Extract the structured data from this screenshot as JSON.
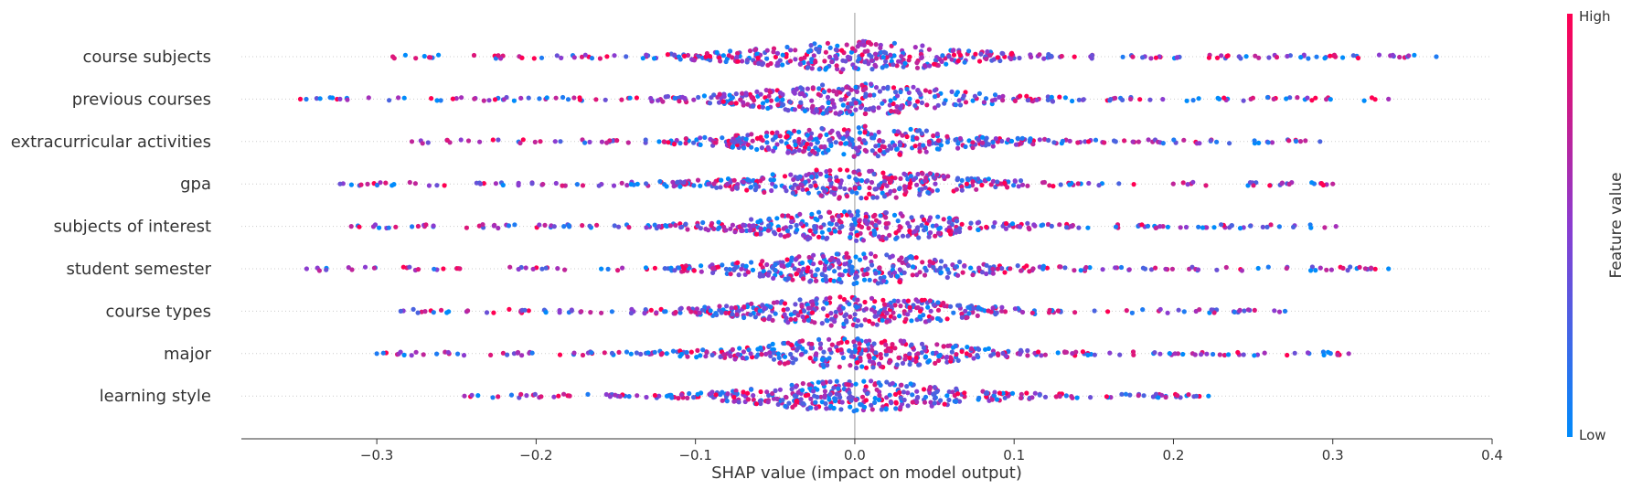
{
  "chart_data": {
    "type": "scatter",
    "subtype": "shap-beeswarm",
    "title": "",
    "xlabel": "SHAP value (impact on model output)",
    "ylabel": "",
    "xlim": [
      -0.385,
      0.4
    ],
    "xticks": [
      -0.3,
      -0.2,
      -0.1,
      0.0,
      0.1,
      0.2,
      0.3,
      0.4
    ],
    "xtick_labels": [
      "−0.3",
      "−0.2",
      "−0.1",
      "0.0",
      "0.1",
      "0.2",
      "0.3",
      "0.4"
    ],
    "features": [
      {
        "name": "course subjects",
        "min": -0.29,
        "max": 0.365
      },
      {
        "name": "previous courses",
        "min": -0.348,
        "max": 0.335
      },
      {
        "name": "extracurricular activities",
        "min": -0.278,
        "max": 0.292
      },
      {
        "name": "gpa",
        "min": -0.323,
        "max": 0.3
      },
      {
        "name": "subjects of interest",
        "min": -0.316,
        "max": 0.302
      },
      {
        "name": "student semester",
        "min": -0.344,
        "max": 0.335
      },
      {
        "name": "course types",
        "min": -0.285,
        "max": 0.27
      },
      {
        "name": "major",
        "min": -0.3,
        "max": 0.31
      },
      {
        "name": "learning style",
        "min": -0.245,
        "max": 0.222
      }
    ],
    "colorbar": {
      "title": "Feature value",
      "high_label": "High",
      "low_label": "Low",
      "high_color": "#ff0052",
      "low_color": "#008bfb"
    },
    "zero_line": true,
    "grid": false
  }
}
